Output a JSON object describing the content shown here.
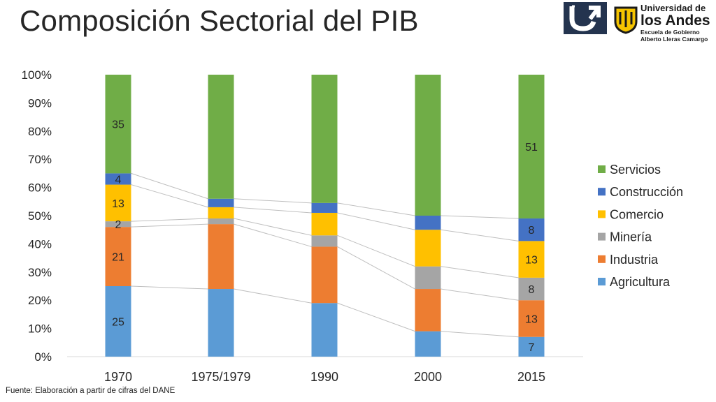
{
  "title": "Composición Sectorial del PIB",
  "source": "Fuente: Elaboración a partir de cifras del DANE",
  "logo": {
    "line1": "Universidad de",
    "line2": "los Andes",
    "line3": "Escuela de Gobierno",
    "line4": "Alberto Lleras Camargo"
  },
  "colors": {
    "Agricultura": "#5b9bd5",
    "Industria": "#ed7d31",
    "Minería": "#a5a5a5",
    "Comercio": "#ffc000",
    "Construcción": "#4472c4",
    "Servicios": "#70ad47"
  },
  "chart_data": {
    "type": "bar",
    "stacked": true,
    "title": "",
    "xlabel": "",
    "ylabel": "",
    "ylim": [
      0,
      100
    ],
    "y_ticks": [
      "0%",
      "10%",
      "20%",
      "30%",
      "40%",
      "50%",
      "60%",
      "70%",
      "80%",
      "90%",
      "100%"
    ],
    "categories": [
      "1970",
      "1975/1979",
      "1990",
      "2000",
      "2015"
    ],
    "legend_position": "right",
    "connector_lines": true,
    "series": [
      {
        "name": "Agricultura",
        "values": [
          25,
          24,
          19,
          9,
          7
        ],
        "labels": [
          "25",
          "",
          "",
          "",
          "7"
        ]
      },
      {
        "name": "Industria",
        "values": [
          21,
          23,
          20,
          15,
          13
        ],
        "labels": [
          "21",
          "",
          "",
          "",
          "13"
        ]
      },
      {
        "name": "Minería",
        "values": [
          2,
          2,
          4,
          8,
          8
        ],
        "labels": [
          "2",
          "",
          "",
          "",
          "8"
        ]
      },
      {
        "name": "Comercio",
        "values": [
          13,
          4,
          8,
          13,
          13
        ],
        "labels": [
          "13",
          "",
          "",
          "",
          "13"
        ]
      },
      {
        "name": "Construcción",
        "values": [
          4,
          3,
          3.5,
          5,
          8
        ],
        "labels": [
          "4",
          "",
          "",
          "",
          "8"
        ]
      },
      {
        "name": "Servicios",
        "values": [
          35,
          44,
          45.5,
          50,
          51
        ],
        "labels": [
          "35",
          "",
          "",
          "",
          "51"
        ]
      }
    ],
    "legend_order": [
      "Servicios",
      "Construcción",
      "Comercio",
      "Minería",
      "Industria",
      "Agricultura"
    ]
  }
}
